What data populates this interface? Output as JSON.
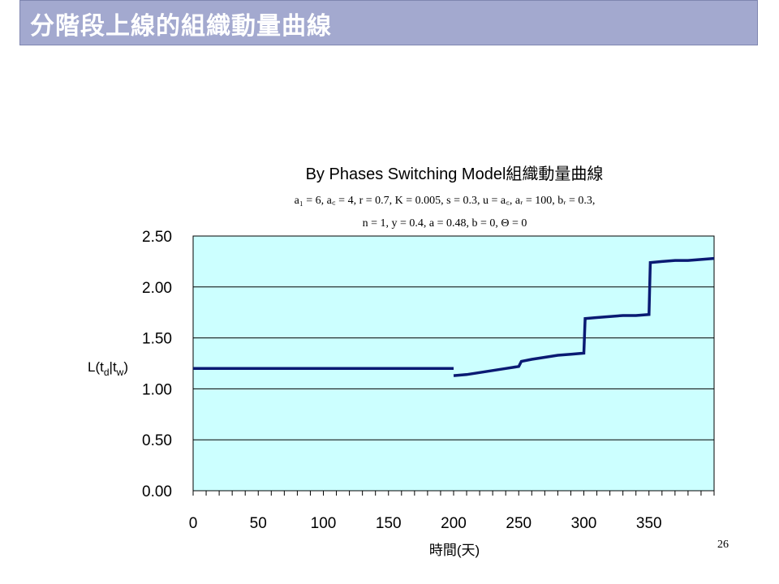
{
  "slide": {
    "title": "分階段上線的組織動量曲線",
    "page_number": "26"
  },
  "chart_data": {
    "type": "line",
    "title": "By Phases Switching Model組織動量曲線",
    "subtitle_line1": "a₁ = 6, a꜀ = 4, r = 0.7, K = 0.005, s = 0.3, u = a꜀, aᵣ = 100, bᵣ = 0.3,",
    "subtitle_line2": "n = 1, y = 0.4, a = 0.48, b = 0, Θ = 0",
    "xlabel": "時間(天)",
    "ylabel": "L(t_d|t_w)",
    "ylabel_main": "L(t",
    "ylabel_sub1": "d",
    "ylabel_mid": "|t",
    "ylabel_sub2": "w",
    "ylabel_end": ")",
    "xlim": [
      0,
      400
    ],
    "ylim": [
      0,
      2.5
    ],
    "x_ticks": [
      0,
      50,
      100,
      150,
      200,
      250,
      300,
      350
    ],
    "x_tick_labels": [
      "0",
      "50",
      "100",
      "150",
      "200",
      "250",
      "300",
      "350"
    ],
    "y_ticks": [
      0,
      0.5,
      1.0,
      1.5,
      2.0,
      2.5
    ],
    "y_tick_labels": [
      "0.00",
      "0.50",
      "1.00",
      "1.50",
      "2.00",
      "2.50"
    ],
    "minor_x_tick_step": 10,
    "grid": "horizontal",
    "plot_background": "#ccffff",
    "series": [
      {
        "color": "#0a1a73",
        "segments": [
          {
            "x": [
              0,
              200
            ],
            "y": [
              1.2,
              1.2
            ]
          },
          {
            "x": [
              200,
              210,
              220,
              230,
              240,
              250,
              252,
              260,
              270,
              280,
              290,
              300,
              301,
              310,
              320,
              330,
              340,
              350,
              351,
              360,
              370,
              380,
              390,
              400
            ],
            "y": [
              1.13,
              1.14,
              1.16,
              1.18,
              1.2,
              1.22,
              1.27,
              1.29,
              1.31,
              1.33,
              1.34,
              1.35,
              1.69,
              1.7,
              1.71,
              1.72,
              1.72,
              1.73,
              2.24,
              2.25,
              2.26,
              2.26,
              2.27,
              2.28
            ]
          }
        ]
      }
    ]
  }
}
